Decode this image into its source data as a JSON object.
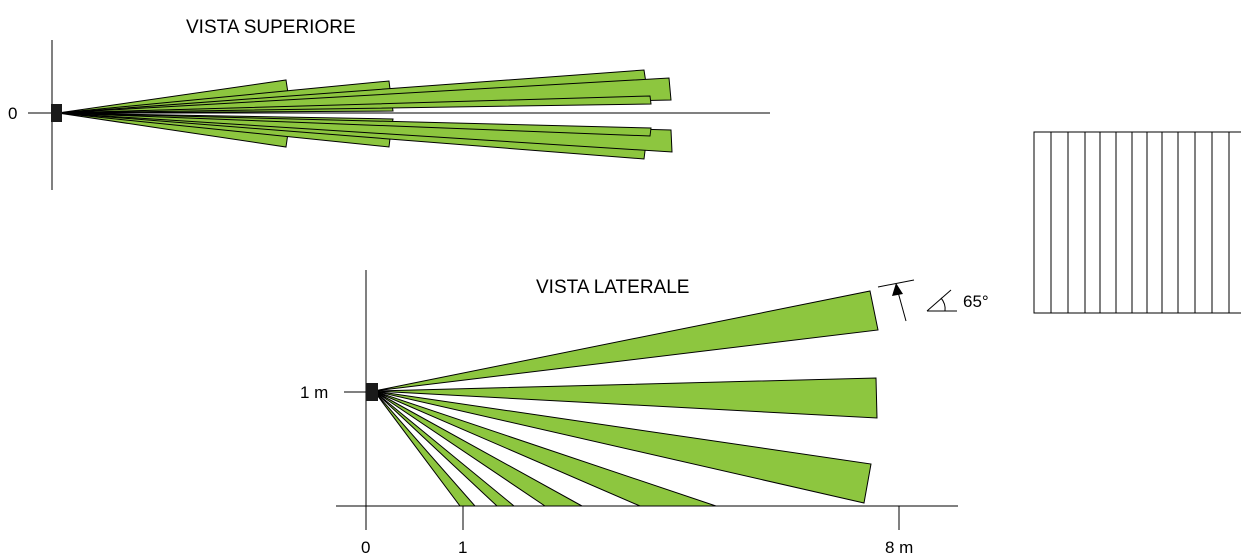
{
  "top_view": {
    "title": "VISTA SUPERIORE",
    "origin_label": "0"
  },
  "side_view": {
    "title": "VISTA LATERALE",
    "height_label": "1 m",
    "x_labels": [
      "0",
      "1",
      "8 m"
    ],
    "angle_label": "65°"
  },
  "colors": {
    "beam_fill": "#8dc63f",
    "sensor": "#1a1a1a",
    "line": "#000000"
  }
}
